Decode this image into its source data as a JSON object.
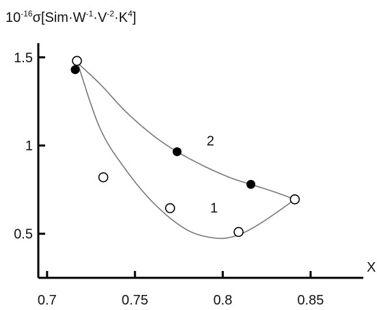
{
  "chart_data": {
    "type": "scatter",
    "ylabel_parts": [
      "10",
      "-16",
      "σ[Sim·W",
      "-1",
      "·V",
      "-2",
      "·K",
      "4",
      "]"
    ],
    "xlabel": "X",
    "xlim": [
      0.695,
      0.88
    ],
    "ylim": [
      0.25,
      1.6
    ],
    "x_ticks": [
      0.7,
      0.75,
      0.8,
      0.85
    ],
    "x_tick_labels": [
      "0.7",
      "0.75",
      "0.8",
      "0.85"
    ],
    "y_ticks": [
      0.5,
      1.0,
      1.5
    ],
    "y_tick_labels": [
      "0.5",
      "1",
      "1.5"
    ],
    "grid": false,
    "series": [
      {
        "name": "1",
        "marker": "open-circle",
        "points": [
          {
            "x": 0.717,
            "y": 1.48
          },
          {
            "x": 0.732,
            "y": 0.82
          },
          {
            "x": 0.77,
            "y": 0.645
          },
          {
            "x": 0.809,
            "y": 0.51
          },
          {
            "x": 0.841,
            "y": 0.695
          }
        ],
        "curve": [
          {
            "x": 0.717,
            "y": 1.48
          },
          {
            "x": 0.73,
            "y": 1.1
          },
          {
            "x": 0.745,
            "y": 0.86
          },
          {
            "x": 0.762,
            "y": 0.66
          },
          {
            "x": 0.78,
            "y": 0.52
          },
          {
            "x": 0.796,
            "y": 0.475
          },
          {
            "x": 0.808,
            "y": 0.49
          },
          {
            "x": 0.82,
            "y": 0.55
          },
          {
            "x": 0.832,
            "y": 0.63
          },
          {
            "x": 0.841,
            "y": 0.695
          }
        ]
      },
      {
        "name": "2",
        "marker": "filled-circle",
        "points": [
          {
            "x": 0.716,
            "y": 1.43
          },
          {
            "x": 0.774,
            "y": 0.965
          },
          {
            "x": 0.816,
            "y": 0.78
          }
        ],
        "curve": [
          {
            "x": 0.716,
            "y": 1.48
          },
          {
            "x": 0.73,
            "y": 1.35
          },
          {
            "x": 0.745,
            "y": 1.19
          },
          {
            "x": 0.76,
            "y": 1.06
          },
          {
            "x": 0.774,
            "y": 0.965
          },
          {
            "x": 0.79,
            "y": 0.88
          },
          {
            "x": 0.805,
            "y": 0.815
          },
          {
            "x": 0.816,
            "y": 0.78
          },
          {
            "x": 0.83,
            "y": 0.735
          },
          {
            "x": 0.841,
            "y": 0.695
          }
        ]
      }
    ],
    "curve_labels": [
      {
        "text": "1",
        "x": 0.795,
        "y": 0.62
      },
      {
        "text": "2",
        "x": 0.793,
        "y": 1.0
      }
    ],
    "colors": {
      "axis": "#000000",
      "curve": "#777777",
      "marker_fill_filled": "#000000",
      "marker_fill_open": "#ffffff"
    }
  }
}
